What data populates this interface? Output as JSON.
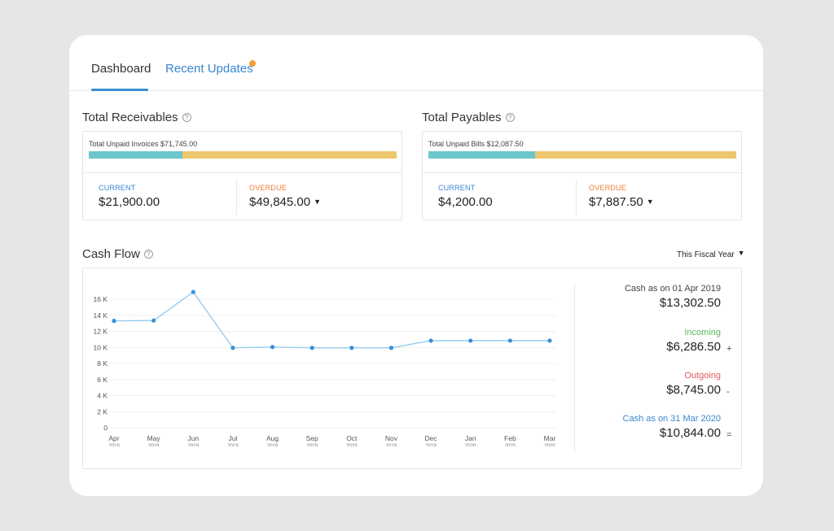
{
  "tabs": {
    "dashboard": "Dashboard",
    "recent_updates": "Recent Updates"
  },
  "receivables": {
    "title": "Total Receivables",
    "unpaid_label": "Total Unpaid Invoices $71,745.00",
    "current_label": "CURRENT",
    "current_value": "$21,900.00",
    "overdue_label": "OVERDUE",
    "overdue_value": "$49,845.00",
    "current_fraction": 0.305
  },
  "payables": {
    "title": "Total Payables",
    "unpaid_label": "Total Unpaid Bills $12,087.50",
    "current_label": "CURRENT",
    "current_value": "$4,200.00",
    "overdue_label": "OVERDUE",
    "overdue_value": "$7,887.50",
    "current_fraction": 0.347
  },
  "cashflow": {
    "title": "Cash Flow",
    "period_select": "This Fiscal Year",
    "opening_label": "Cash as on 01 Apr 2019",
    "opening_value": "$13,302.50",
    "incoming_label": "Incoming",
    "incoming_value": "$6,286.50",
    "incoming_sign": "+",
    "outgoing_label": "Outgoing",
    "outgoing_value": "$8,745.00",
    "outgoing_sign": "-",
    "closing_label": "Cash as on 31 Mar 2020",
    "closing_value": "$10,844.00",
    "closing_sign": "="
  },
  "colors": {
    "current_bar": "#6cc6cc",
    "overdue_bar": "#edc76b",
    "accent_blue": "#3a86d0",
    "incoming_green": "#5cb85c",
    "outgoing_red": "#e05a5a",
    "line": "#8ec9ee",
    "point": "#3a8fd6"
  },
  "chart_data": {
    "type": "line",
    "categories": [
      "Apr|2019",
      "May|2019",
      "Jun|2019",
      "Jul|2019",
      "Aug|2019",
      "Sep|2019",
      "Oct|2019",
      "Nov|2019",
      "Dec|2019",
      "Jan|2020",
      "Feb|2020",
      "Mar|2020"
    ],
    "values": [
      13302.5,
      13350,
      16900,
      9950,
      10050,
      9950,
      9950,
      9950,
      10844,
      10844,
      10844,
      10844
    ],
    "y_ticks": [
      0,
      2000,
      4000,
      6000,
      8000,
      10000,
      12000,
      14000,
      16000
    ],
    "y_tick_labels": [
      "0",
      "2 K",
      "4 K",
      "6 K",
      "8 K",
      "10 K",
      "12 K",
      "14 K",
      "16 K"
    ],
    "ylim": [
      0,
      16000
    ],
    "grid": true
  }
}
